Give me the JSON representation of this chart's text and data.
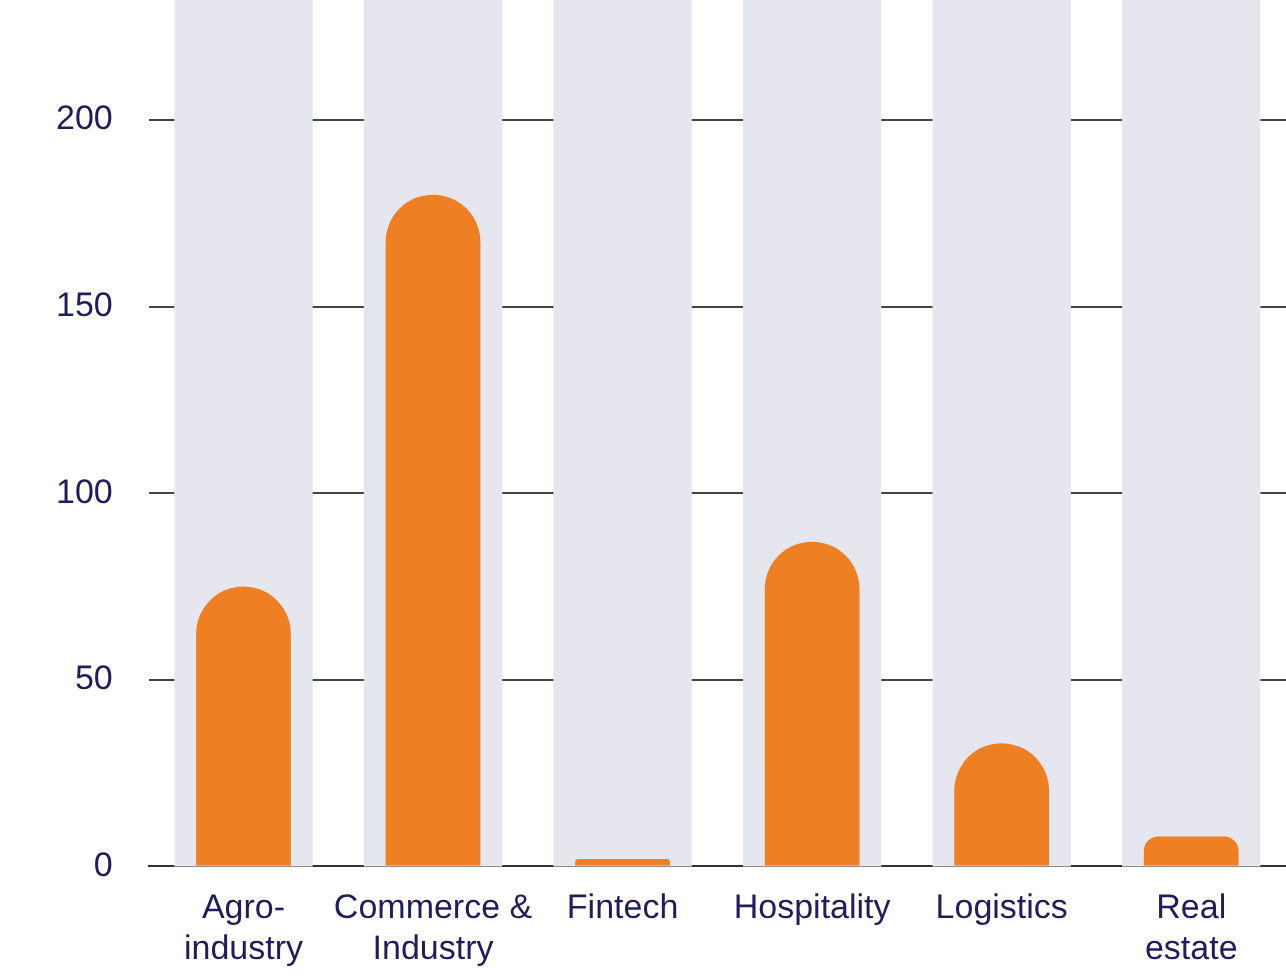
{
  "chart_data": {
    "type": "bar",
    "categories": [
      "Agro-industry",
      "Commerce & Industry",
      "Fintech",
      "Hospitality",
      "Logistics",
      "Real estate"
    ],
    "values": [
      75,
      180,
      2,
      87,
      33,
      8
    ],
    "color": "#ee7f22",
    "ylim": [
      0,
      200
    ],
    "yticks": [
      0,
      50,
      100,
      150,
      200
    ],
    "grid": "y",
    "legend": false,
    "bands": [
      {
        "axis": "x",
        "from": "Agro-industry",
        "to": "Agro-industry",
        "color": "#e6e6ee"
      },
      {
        "axis": "x",
        "from": "Commerce & Industry",
        "to": "Commerce & Industry",
        "color": "#e6e6ee"
      },
      {
        "axis": "x",
        "from": "Fintech",
        "to": "Fintech",
        "color": "#e6e6ee"
      },
      {
        "axis": "x",
        "from": "Hospitality",
        "to": "Hospitality",
        "color": "#e6e6ee"
      },
      {
        "axis": "x",
        "from": "Logistics",
        "to": "Logistics",
        "color": "#e6e6ee"
      },
      {
        "axis": "x",
        "from": "Real estate",
        "to": "Real estate",
        "color": "#e6e6ee"
      }
    ]
  }
}
